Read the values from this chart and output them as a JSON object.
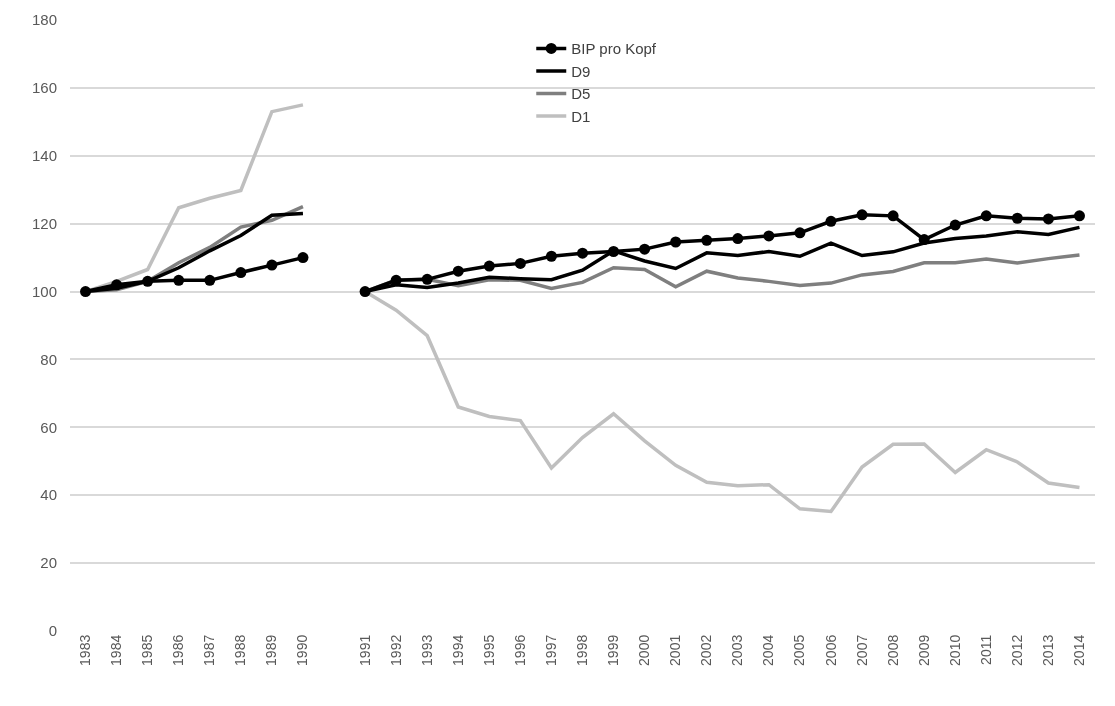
{
  "chart_data": {
    "type": "line",
    "categories": [
      "1983",
      "1984",
      "1985",
      "1986",
      "1987",
      "1988",
      "1989",
      "1990",
      null,
      "1991",
      "1992",
      "1993",
      "1994",
      "1995",
      "1996",
      "1997",
      "1998",
      "1999",
      "2000",
      "2001",
      "2002",
      "2003",
      "2004",
      "2005",
      "2006",
      "2007",
      "2008",
      "2009",
      "2010",
      "2011",
      "2012",
      "2013",
      "2014"
    ],
    "series": [
      {
        "name": "BIP pro Kopf",
        "color": "#000000",
        "marker": "circle",
        "values": [
          100,
          102,
          103,
          103.3,
          103.3,
          105.6,
          107.8,
          110,
          null,
          100,
          103.3,
          103.6,
          106,
          107.5,
          108.3,
          110.4,
          111.3,
          111.8,
          112.5,
          114.6,
          115.1,
          115.6,
          116.4,
          117.3,
          120.7,
          122.6,
          122.3,
          115.3,
          119.6,
          122.3,
          121.6,
          121.4,
          122.3
        ]
      },
      {
        "name": "D9",
        "color": "#000000",
        "marker": "none",
        "values": [
          100,
          101,
          103,
          107,
          112,
          116.5,
          122.5,
          123,
          null,
          100,
          102,
          101.2,
          102.5,
          104.2,
          103.8,
          103.5,
          106.3,
          112,
          109,
          106.8,
          111.4,
          110.6,
          111.8,
          110.4,
          114.3,
          110.6,
          111.7,
          114.3,
          115.6,
          116.4,
          117.6,
          116.8,
          118.9
        ]
      },
      {
        "name": "D5",
        "color": "#7f7f7f",
        "marker": "none",
        "values": [
          100,
          100.5,
          103,
          108.5,
          113,
          119,
          121,
          125,
          null,
          100,
          103.4,
          103.6,
          101.7,
          103.5,
          103.3,
          100.9,
          102.7,
          107,
          106.5,
          101.4,
          106,
          104,
          103,
          101.8,
          102.5,
          104.9,
          105.9,
          108.5,
          108.5,
          109.6,
          108.4,
          109.7,
          110.8
        ]
      },
      {
        "name": "D1",
        "color": "#bfbfbf",
        "marker": "none",
        "values": [
          100,
          103,
          106.5,
          124.7,
          127.5,
          129.8,
          153,
          155,
          null,
          100,
          94.5,
          87,
          66,
          63.2,
          62,
          48,
          57,
          64,
          56,
          48.8,
          43.8,
          42.8,
          43.1,
          36,
          35.2,
          48.3,
          55,
          55.1,
          46.7,
          53.4,
          49.8,
          43.6,
          42.3
        ]
      }
    ],
    "ylim": [
      0,
      180
    ],
    "yticks": [
      0,
      20,
      40,
      60,
      80,
      100,
      120,
      140,
      160,
      180
    ],
    "grid": "y",
    "legend": "top",
    "line_style": "solid"
  }
}
